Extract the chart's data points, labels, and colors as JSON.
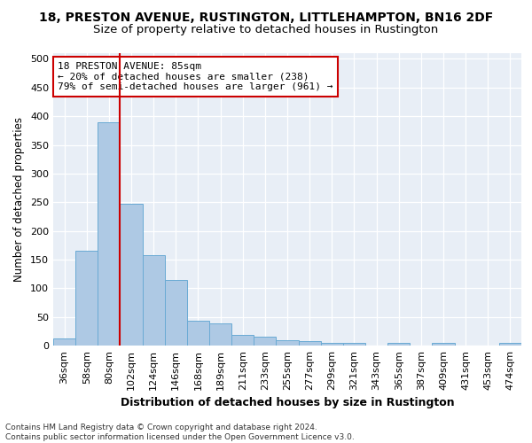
{
  "title1": "18, PRESTON AVENUE, RUSTINGTON, LITTLEHAMPTON, BN16 2DF",
  "title2": "Size of property relative to detached houses in Rustington",
  "xlabel": "Distribution of detached houses by size in Rustington",
  "ylabel": "Number of detached properties",
  "footer1": "Contains HM Land Registry data © Crown copyright and database right 2024.",
  "footer2": "Contains public sector information licensed under the Open Government Licence v3.0.",
  "bins": [
    "36sqm",
    "58sqm",
    "80sqm",
    "102sqm",
    "124sqm",
    "146sqm",
    "168sqm",
    "189sqm",
    "211sqm",
    "233sqm",
    "255sqm",
    "277sqm",
    "299sqm",
    "321sqm",
    "343sqm",
    "365sqm",
    "387sqm",
    "409sqm",
    "431sqm",
    "453sqm",
    "474sqm"
  ],
  "values": [
    13,
    165,
    390,
    248,
    157,
    115,
    44,
    39,
    18,
    15,
    10,
    7,
    5,
    4,
    0,
    5,
    0,
    4,
    0,
    0,
    4
  ],
  "bar_color": "#aec9e4",
  "bar_edge_color": "#6aaad4",
  "red_line_index": 2,
  "annotation_title": "18 PRESTON AVENUE: 85sqm",
  "annotation_line1": "← 20% of detached houses are smaller (238)",
  "annotation_line2": "79% of semi-detached houses are larger (961) →",
  "annotation_box_color": "#ffffff",
  "annotation_box_edge": "#cc0000",
  "red_line_color": "#cc0000",
  "background_color": "#e8eef6",
  "ylim": [
    0,
    510
  ],
  "yticks": [
    0,
    50,
    100,
    150,
    200,
    250,
    300,
    350,
    400,
    450,
    500
  ],
  "title1_fontsize": 10,
  "title2_fontsize": 9.5,
  "xlabel_fontsize": 9,
  "ylabel_fontsize": 8.5,
  "tick_fontsize": 8,
  "annotation_fontsize": 8,
  "footer_fontsize": 6.5
}
